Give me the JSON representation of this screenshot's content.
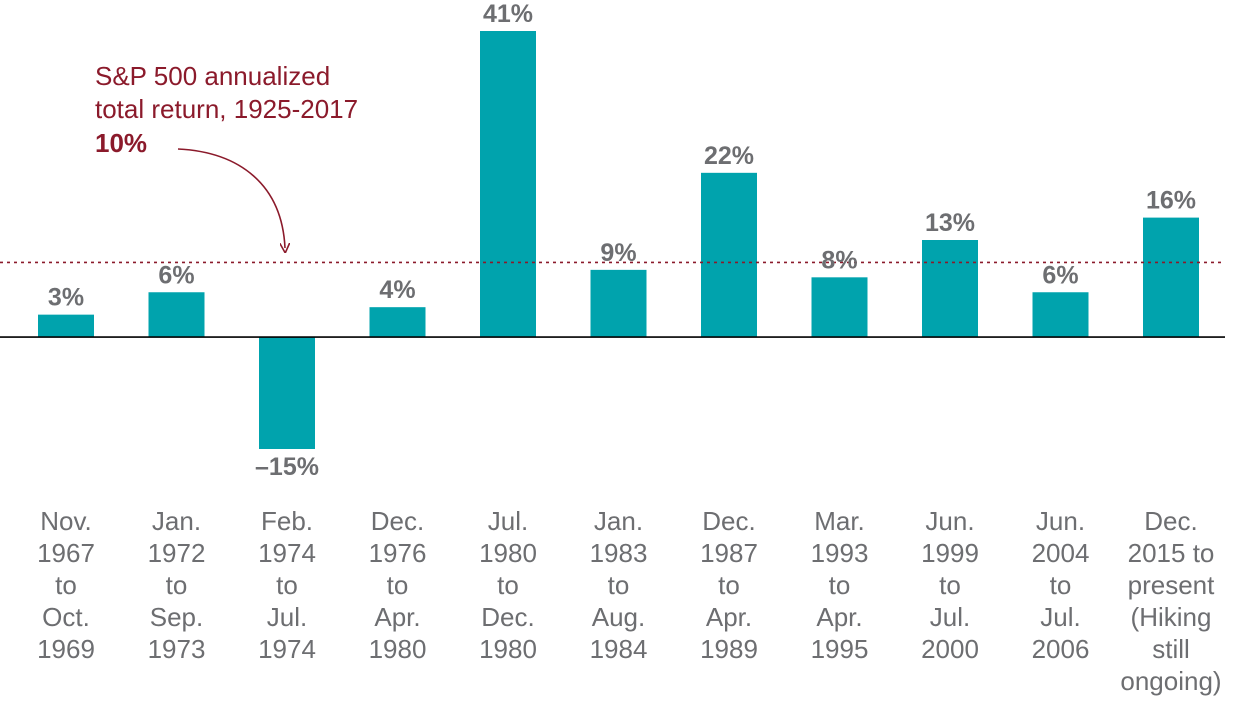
{
  "chart_data": {
    "type": "bar",
    "categories": [
      [
        "Nov.",
        "1967",
        "to",
        "Oct.",
        "1969"
      ],
      [
        "Jan.",
        "1972",
        "to",
        "Sep.",
        "1973"
      ],
      [
        "Feb.",
        "1974",
        "to",
        "Jul.",
        "1974"
      ],
      [
        "Dec.",
        "1976",
        "to",
        "Apr.",
        "1980"
      ],
      [
        "Jul.",
        "1980",
        "to",
        "Dec.",
        "1980"
      ],
      [
        "Jan.",
        "1983",
        "to",
        "Aug.",
        "1984"
      ],
      [
        "Dec.",
        "1987",
        "to",
        "Apr.",
        "1989"
      ],
      [
        "Mar.",
        "1993",
        "to",
        "Apr.",
        "1995"
      ],
      [
        "Jun.",
        "1999",
        "to",
        "Jul.",
        "2000"
      ],
      [
        "Jun.",
        "2004",
        "to",
        "Jul.",
        "2006"
      ],
      [
        "Dec.",
        "2015 to",
        "present",
        "(Hiking",
        "still",
        "ongoing)"
      ]
    ],
    "values": [
      3,
      6,
      -15,
      4,
      41,
      9,
      22,
      8,
      13,
      6,
      16
    ],
    "value_labels": [
      "3%",
      "6%",
      "–15%",
      "4%",
      "41%",
      "9%",
      "22%",
      "8%",
      "13%",
      "6%",
      "16%"
    ],
    "ylim": [
      -15,
      41
    ],
    "reference_line": {
      "value": 10,
      "label_lines": [
        "S&P 500 annualized",
        "total return, 1925-2017"
      ],
      "value_label": "10%"
    },
    "bar_color": "#00a3ad",
    "reference_color": "#8b1a2b",
    "text_color": "#6d6e71",
    "axis_color": "#000000"
  }
}
